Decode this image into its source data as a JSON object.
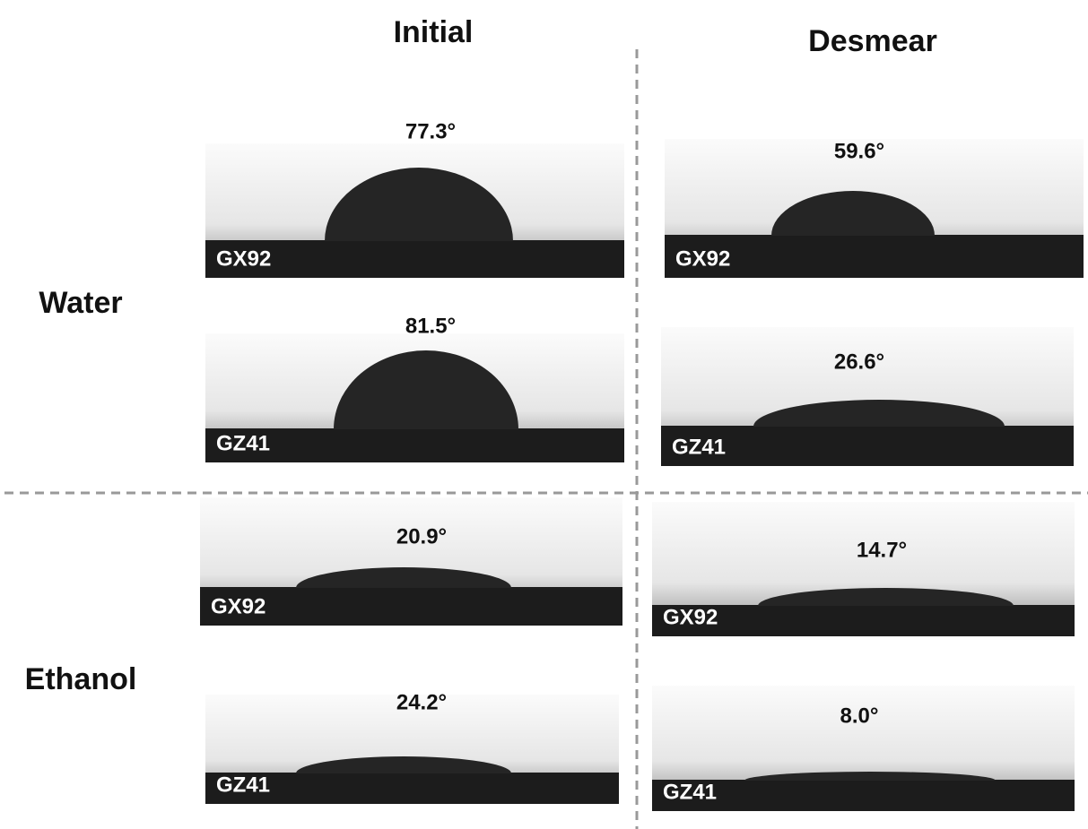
{
  "columns": [
    "Initial",
    "Desmear"
  ],
  "rows": [
    "Water",
    "Ethanol"
  ],
  "panels": [
    {
      "angle": "77.3°",
      "sample": "GX92"
    },
    {
      "angle": "81.5°",
      "sample": "GZ41"
    },
    {
      "angle": "59.6°",
      "sample": "GX92"
    },
    {
      "angle": "26.6°",
      "sample": "GZ41"
    },
    {
      "angle": "20.9°",
      "sample": "GX92"
    },
    {
      "angle": "24.2°",
      "sample": "GZ41"
    },
    {
      "angle": "14.7°",
      "sample": "GX92"
    },
    {
      "angle": "8.0°",
      "sample": "GZ41"
    }
  ]
}
